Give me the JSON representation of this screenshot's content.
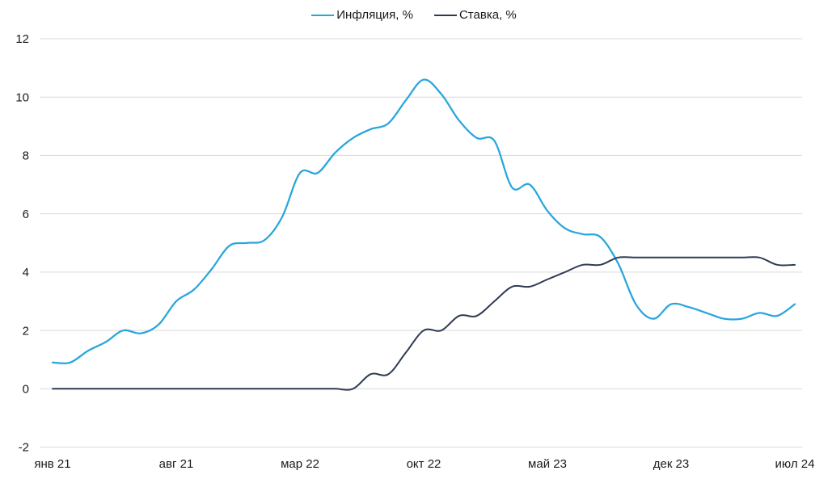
{
  "chart_data": {
    "type": "line",
    "title": "",
    "frequency": "monthly",
    "x_start": "2021-01",
    "x_end": "2024-07",
    "x_months": [
      "2021-01",
      "2021-02",
      "2021-03",
      "2021-04",
      "2021-05",
      "2021-06",
      "2021-07",
      "2021-08",
      "2021-09",
      "2021-10",
      "2021-11",
      "2021-12",
      "2022-01",
      "2022-02",
      "2022-03",
      "2022-04",
      "2022-05",
      "2022-06",
      "2022-07",
      "2022-08",
      "2022-09",
      "2022-10",
      "2022-11",
      "2022-12",
      "2023-01",
      "2023-02",
      "2023-03",
      "2023-04",
      "2023-05",
      "2023-06",
      "2023-07",
      "2023-08",
      "2023-09",
      "2023-10",
      "2023-11",
      "2023-12",
      "2024-01",
      "2024-02",
      "2024-03",
      "2024-04",
      "2024-05",
      "2024-06",
      "2024-07"
    ],
    "series": [
      {
        "name": "Инфляция, %",
        "color": "#28a5de",
        "values": [
          0.9,
          0.9,
          1.3,
          1.6,
          2.0,
          1.9,
          2.2,
          3.0,
          3.4,
          4.1,
          4.9,
          5.0,
          5.1,
          5.9,
          7.4,
          7.4,
          8.1,
          8.6,
          8.9,
          9.1,
          9.9,
          10.6,
          10.1,
          9.2,
          8.6,
          8.5,
          6.9,
          7.0,
          6.1,
          5.5,
          5.3,
          5.2,
          4.3,
          2.9,
          2.4,
          2.9,
          2.8,
          2.6,
          2.4,
          2.4,
          2.6,
          2.5,
          2.9
        ]
      },
      {
        "name": "Ставка, %",
        "color": "#2f3b52",
        "values": [
          0,
          0,
          0,
          0,
          0,
          0,
          0,
          0,
          0,
          0,
          0,
          0,
          0,
          0,
          0,
          0,
          0,
          0,
          0.5,
          0.5,
          1.25,
          2.0,
          2.0,
          2.5,
          2.5,
          3.0,
          3.5,
          3.5,
          3.75,
          4.0,
          4.25,
          4.25,
          4.5,
          4.5,
          4.5,
          4.5,
          4.5,
          4.5,
          4.5,
          4.5,
          4.5,
          4.25,
          4.25
        ]
      }
    ],
    "x_tick_labels": [
      "янв 21",
      "авг 21",
      "мар 22",
      "окт 22",
      "май 23",
      "дек 23",
      "июл 24"
    ],
    "x_tick_indices": [
      0,
      7,
      14,
      21,
      28,
      35,
      42
    ],
    "y_ticks": [
      -2,
      0,
      2,
      4,
      6,
      8,
      10,
      12
    ],
    "ylim": [
      -2,
      12
    ],
    "grid": "horizontal",
    "line_style": "smooth",
    "legend_position": "top-center",
    "colors": {
      "gridline": "#d9d9d9",
      "axis_text": "#1a1a1a",
      "background": "#ffffff"
    }
  }
}
